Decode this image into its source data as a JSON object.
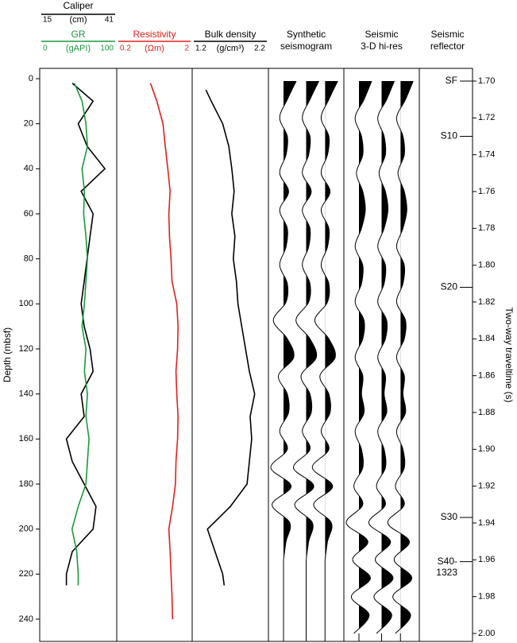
{
  "chart_data": {
    "type": "well-log",
    "depth_axis": {
      "label": "Depth (mbsf)",
      "ylim": [
        0,
        240
      ],
      "yticks": [
        0,
        20,
        40,
        60,
        80,
        100,
        120,
        140,
        160,
        180,
        200,
        220,
        240
      ]
    },
    "time_axis": {
      "label": "Two-way traveltime (s)",
      "ylim": [
        1.7,
        2.0
      ],
      "yticks": [
        {
          "value": 1.7,
          "label": "1.70"
        },
        {
          "value": 1.72,
          "label": "1.72"
        },
        {
          "value": 1.74,
          "label": "1.74"
        },
        {
          "value": 1.76,
          "label": "1.76"
        },
        {
          "value": 1.78,
          "label": "1.78"
        },
        {
          "value": 1.8,
          "label": "1.80"
        },
        {
          "value": 1.82,
          "label": "1.82"
        },
        {
          "value": 1.84,
          "label": "1.84"
        },
        {
          "value": 1.86,
          "label": "1.86"
        },
        {
          "value": 1.88,
          "label": "1.88"
        },
        {
          "value": 1.9,
          "label": "1.90"
        },
        {
          "value": 1.92,
          "label": "1.92"
        },
        {
          "value": 1.94,
          "label": "1.94"
        },
        {
          "value": 1.96,
          "label": "1.96"
        },
        {
          "value": 1.98,
          "label": "1.98"
        },
        {
          "value": 2.0,
          "label": "2.00"
        }
      ]
    },
    "logs": [
      {
        "name": "Caliper",
        "unit": "(cm)",
        "min": 15,
        "max": 41,
        "color": "#000000",
        "track": 0,
        "header_row": 0,
        "depths": [
          2,
          10,
          20,
          30,
          40,
          50,
          60,
          70,
          80,
          90,
          100,
          110,
          120,
          130,
          140,
          150,
          160,
          170,
          180,
          190,
          200,
          210,
          220,
          225
        ],
        "values": [
          26,
          33,
          28,
          31,
          37,
          29,
          33,
          32,
          31,
          30,
          29,
          30,
          32,
          33,
          29,
          30,
          24,
          26,
          30,
          34,
          33,
          26,
          24,
          24
        ]
      },
      {
        "name": "GR",
        "unit": "(gAPI)",
        "min": 0,
        "max": 100,
        "color": "#1a9a3a",
        "track": 0,
        "header_row": 1,
        "depths": [
          2,
          10,
          20,
          30,
          40,
          50,
          60,
          70,
          80,
          90,
          100,
          110,
          120,
          130,
          140,
          150,
          160,
          170,
          180,
          190,
          200,
          210,
          220,
          225
        ],
        "values": [
          45,
          55,
          60,
          62,
          55,
          58,
          57,
          60,
          62,
          60,
          58,
          55,
          60,
          58,
          62,
          60,
          64,
          62,
          60,
          50,
          42,
          48,
          50,
          50
        ]
      },
      {
        "name": "Resistivity",
        "unit": "(Ωm)",
        "min": 0.2,
        "max": 2,
        "log_scale": true,
        "color": "#e0201b",
        "track": 1,
        "header_row": 1,
        "depths": [
          2,
          10,
          20,
          30,
          40,
          50,
          60,
          70,
          80,
          90,
          100,
          110,
          120,
          130,
          140,
          150,
          160,
          170,
          180,
          190,
          200,
          210,
          220,
          230,
          240
        ],
        "values": [
          0.56,
          0.68,
          0.82,
          0.88,
          0.95,
          1.02,
          0.98,
          1.0,
          1.05,
          1.08,
          1.25,
          1.3,
          1.28,
          1.22,
          1.25,
          1.3,
          1.28,
          1.22,
          1.2,
          1.1,
          0.98,
          1.02,
          1.05,
          1.08,
          1.1
        ]
      },
      {
        "name": "Bulk density",
        "unit": "(g/cm³)",
        "min": 1.2,
        "max": 2.2,
        "color": "#000000",
        "track": 2,
        "header_row": 1,
        "depths": [
          5,
          10,
          20,
          30,
          40,
          50,
          60,
          70,
          80,
          90,
          100,
          110,
          120,
          130,
          140,
          150,
          160,
          170,
          180,
          190,
          200,
          210,
          220,
          225
        ],
        "values": [
          1.38,
          1.45,
          1.6,
          1.68,
          1.72,
          1.75,
          1.72,
          1.76,
          1.74,
          1.78,
          1.8,
          1.85,
          1.9,
          1.95,
          2.02,
          1.96,
          1.98,
          1.95,
          1.92,
          1.7,
          1.4,
          1.5,
          1.6,
          1.62
        ]
      }
    ],
    "seismic": [
      {
        "title": [
          "Synthetic",
          "seismogram"
        ],
        "track": 3,
        "times": [
          1.7,
          1.71,
          1.72,
          1.73,
          1.74,
          1.75,
          1.76,
          1.77,
          1.78,
          1.79,
          1.8,
          1.81,
          1.82,
          1.83,
          1.84,
          1.85,
          1.86,
          1.87,
          1.88,
          1.89,
          1.9,
          1.91,
          1.92,
          1.93,
          1.94,
          1.95,
          1.96
        ],
        "amplitudes": [
          1,
          0.3,
          -0.3,
          0.3,
          0.2,
          -0.3,
          0.4,
          -0.3,
          0.3,
          0.2,
          -0.3,
          0.3,
          0.2,
          -0.8,
          0.3,
          0.8,
          -0.4,
          0.3,
          0.4,
          -0.3,
          0.3,
          -1,
          0.6,
          -0.9,
          0.5,
          0.2,
          0
        ]
      },
      {
        "title": [
          "Seismic",
          "3-D hi-res"
        ],
        "track": 4,
        "times": [
          1.7,
          1.71,
          1.72,
          1.73,
          1.74,
          1.75,
          1.76,
          1.77,
          1.78,
          1.79,
          1.8,
          1.81,
          1.82,
          1.83,
          1.84,
          1.85,
          1.86,
          1.87,
          1.88,
          1.89,
          1.9,
          1.91,
          1.92,
          1.93,
          1.94,
          1.95,
          1.96,
          1.97,
          1.98,
          1.99,
          2.0
        ],
        "amplitudes": [
          1,
          0.4,
          -0.3,
          0.2,
          0.3,
          -0.2,
          0.3,
          0.5,
          0.2,
          -0.3,
          0.3,
          0.2,
          -0.3,
          0.4,
          0.3,
          -0.3,
          0.3,
          0.2,
          0.4,
          -0.3,
          0.2,
          0.3,
          -0.4,
          0.3,
          -1,
          0.7,
          -0.5,
          0.9,
          -0.6,
          0.8,
          -0.4
        ]
      }
    ],
    "reflector_title": [
      "Seismic",
      "reflector"
    ],
    "reflectors": [
      {
        "label": [
          "SF"
        ],
        "time": 1.7
      },
      {
        "label": [
          "S10"
        ],
        "time": 1.73
      },
      {
        "label": [
          "S20"
        ],
        "time": 1.812
      },
      {
        "label": [
          "S30"
        ],
        "time": 1.937
      },
      {
        "label": [
          "S40-",
          "1323"
        ],
        "time": 1.961
      }
    ]
  }
}
